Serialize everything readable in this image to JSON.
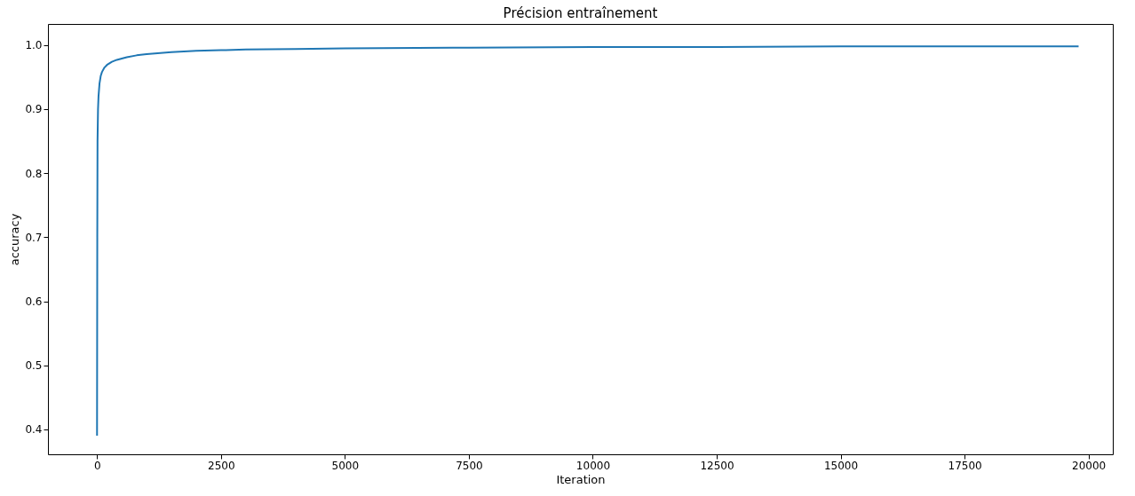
{
  "chart_data": {
    "type": "line",
    "title": "Précision entraînement",
    "xlabel": "Iteration",
    "ylabel": "accuracy",
    "x": [
      0,
      5,
      10,
      20,
      30,
      50,
      75,
      100,
      150,
      200,
      300,
      400,
      600,
      800,
      1000,
      1500,
      2000,
      2500,
      3000,
      4000,
      5000,
      7500,
      10000,
      12500,
      15000,
      17500,
      19800
    ],
    "series": [
      {
        "color": "#1f77b4",
        "values": [
          0.39,
          0.7,
          0.85,
          0.9,
          0.92,
          0.94,
          0.952,
          0.958,
          0.965,
          0.969,
          0.974,
          0.977,
          0.981,
          0.984,
          0.986,
          0.989,
          0.991,
          0.992,
          0.993,
          0.994,
          0.995,
          0.996,
          0.997,
          0.997,
          0.998,
          0.998,
          0.998
        ]
      }
    ],
    "xlim": [
      -990,
      20490
    ],
    "ylim": [
      0.361,
      1.033
    ],
    "xticks": [
      0,
      2500,
      5000,
      7500,
      10000,
      12500,
      15000,
      17500,
      20000
    ],
    "yticks": [
      {
        "value": 0.4,
        "label": "0.4"
      },
      {
        "value": 0.5,
        "label": "0.5"
      },
      {
        "value": 0.6,
        "label": "0.6"
      },
      {
        "value": 0.7,
        "label": "0.7"
      },
      {
        "value": 0.8,
        "label": "0.8"
      },
      {
        "value": 0.9,
        "label": "0.9"
      },
      {
        "value": 1.0,
        "label": "1.0"
      }
    ],
    "grid": false,
    "marker": "none",
    "line_style": "solid"
  }
}
